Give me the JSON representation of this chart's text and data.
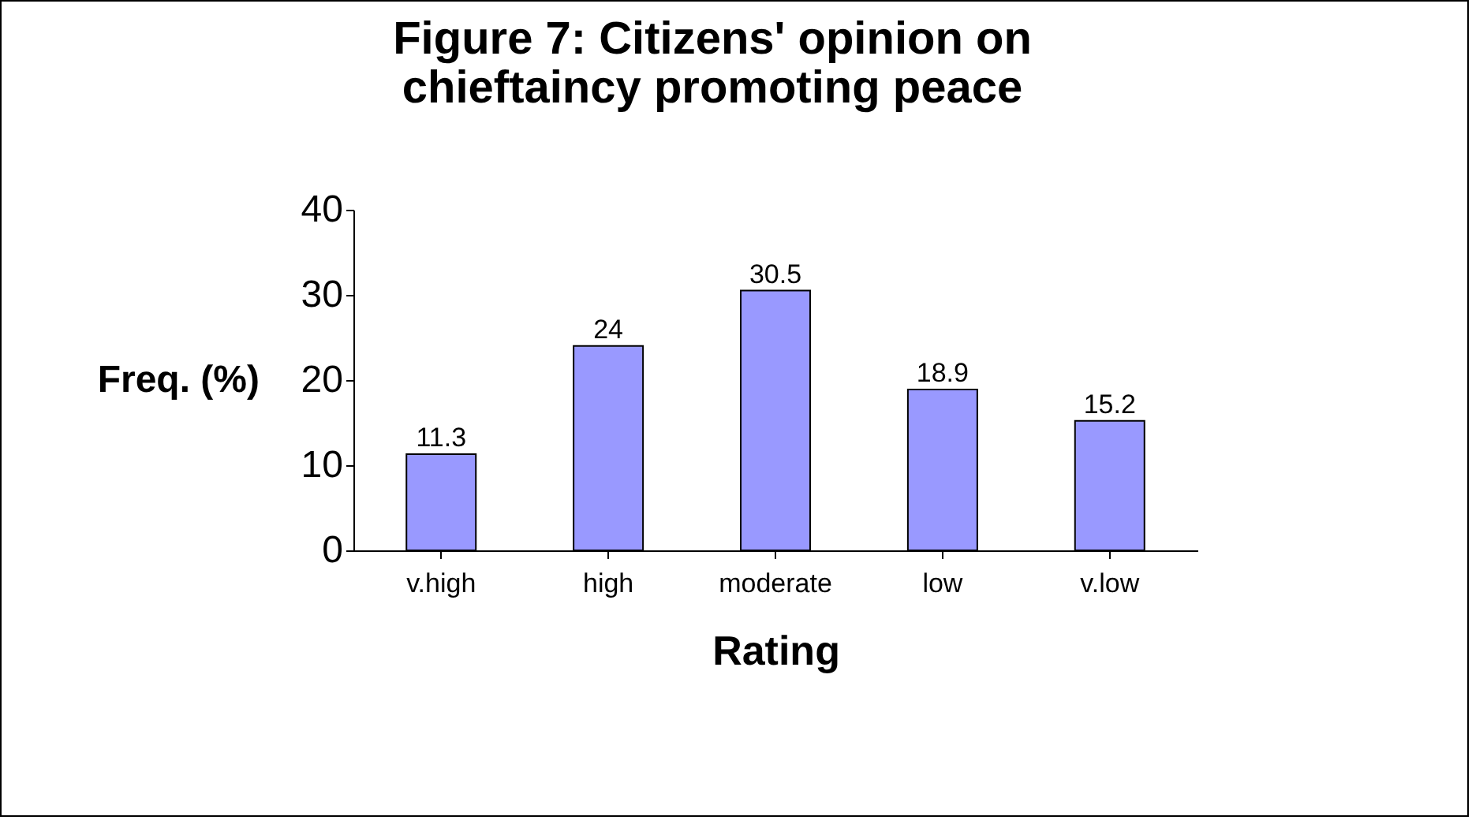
{
  "chart_data": {
    "type": "bar",
    "title": "Figure 7: Citizens' opinion on chieftaincy promoting peace",
    "xlabel": "Rating",
    "ylabel": "Freq. (%)",
    "categories": [
      "v.high",
      "high",
      "moderate",
      "low",
      "v.low"
    ],
    "values": [
      11.3,
      24,
      30.5,
      18.9,
      15.2
    ],
    "color": "#9999ff",
    "ylim": [
      0,
      40
    ],
    "yticks": [
      0,
      10,
      20,
      30,
      40
    ],
    "grid": false,
    "data_labels": true
  }
}
